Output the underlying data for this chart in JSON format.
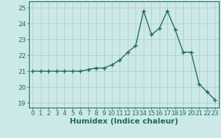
{
  "x": [
    0,
    1,
    2,
    3,
    4,
    5,
    6,
    7,
    8,
    9,
    10,
    11,
    12,
    13,
    14,
    15,
    16,
    17,
    18,
    19,
    20,
    21,
    22,
    23
  ],
  "y": [
    21.0,
    21.0,
    21.0,
    21.0,
    21.0,
    21.0,
    21.0,
    21.1,
    21.2,
    21.2,
    21.4,
    21.7,
    22.2,
    22.6,
    24.8,
    23.3,
    23.7,
    24.8,
    23.6,
    22.2,
    22.2,
    20.2,
    19.7,
    19.2
  ],
  "line_color": "#1a6b5a",
  "marker": "+",
  "marker_size": 4,
  "bg_color": "#cce8e8",
  "grid_color": "#b0cccc",
  "xlabel": "Humidex (Indice chaleur)",
  "xlabel_fontsize": 8,
  "yticks": [
    19,
    20,
    21,
    22,
    23,
    24,
    25
  ],
  "xticks": [
    0,
    1,
    2,
    3,
    4,
    5,
    6,
    7,
    8,
    9,
    10,
    11,
    12,
    13,
    14,
    15,
    16,
    17,
    18,
    19,
    20,
    21,
    22,
    23
  ],
  "ylim": [
    18.7,
    25.4
  ],
  "xlim": [
    -0.5,
    23.5
  ],
  "tick_fontsize": 6.5,
  "linewidth": 1.0
}
